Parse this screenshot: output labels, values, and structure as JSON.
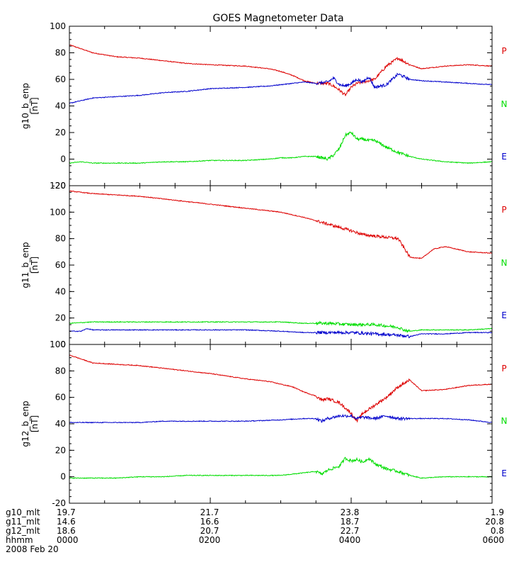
{
  "title": "GOES Magnetometer Data",
  "colors": {
    "P": "#dd0000",
    "N": "#00dd00",
    "E": "#0000cc",
    "axis": "#000000"
  },
  "legend_labels": [
    "P",
    "N",
    "E"
  ],
  "chart_data": [
    {
      "type": "line",
      "ylabel": "g10_b_enp",
      "unit": "[nT]",
      "ylim": [
        -20,
        100
      ],
      "yticks": [
        -20,
        0,
        20,
        40,
        60,
        80,
        100
      ],
      "xlim": [
        0,
        360
      ],
      "series": [
        {
          "name": "P",
          "x": [
            0,
            10,
            20,
            40,
            60,
            80,
            100,
            120,
            150,
            170,
            180,
            190,
            200,
            210,
            220,
            225,
            230,
            235,
            240,
            245,
            250,
            255,
            260,
            270,
            280,
            290,
            300,
            320,
            340,
            360
          ],
          "y": [
            86,
            83,
            80,
            77,
            76,
            74,
            72,
            71,
            70,
            68,
            66,
            63,
            59,
            57,
            57,
            55,
            52,
            48,
            54,
            57,
            58,
            59,
            60,
            70,
            76,
            71,
            68,
            70,
            71,
            70
          ]
        },
        {
          "name": "E",
          "x": [
            0,
            10,
            20,
            40,
            60,
            80,
            100,
            120,
            150,
            170,
            180,
            190,
            200,
            210,
            220,
            225,
            230,
            235,
            240,
            245,
            250,
            255,
            260,
            270,
            280,
            290,
            300,
            320,
            340,
            360
          ],
          "y": [
            42,
            44,
            46,
            47,
            48,
            50,
            51,
            53,
            54,
            55,
            56,
            57,
            58,
            57,
            58,
            61,
            56,
            55,
            57,
            60,
            58,
            62,
            54,
            56,
            64,
            60,
            59,
            58,
            57,
            56
          ]
        },
        {
          "name": "N",
          "x": [
            0,
            10,
            20,
            40,
            60,
            80,
            100,
            120,
            150,
            170,
            180,
            190,
            200,
            210,
            215,
            220,
            225,
            230,
            235,
            240,
            245,
            250,
            255,
            260,
            270,
            280,
            290,
            300,
            320,
            340,
            360
          ],
          "y": [
            -3,
            -2,
            -3,
            -3,
            -3,
            -2,
            -2,
            -1,
            -1,
            0,
            1,
            1,
            2,
            2,
            1,
            0,
            3,
            8,
            18,
            20,
            15,
            15,
            14,
            14,
            9,
            5,
            2,
            0,
            -2,
            -3,
            -2
          ]
        }
      ]
    },
    {
      "type": "line",
      "ylabel": "g11_b_enp",
      "unit": "[nT]",
      "ylim": [
        0,
        120
      ],
      "yticks": [
        0,
        20,
        40,
        60,
        80,
        100,
        120
      ],
      "xlim": [
        0,
        360
      ],
      "series": [
        {
          "name": "P",
          "x": [
            0,
            10,
            20,
            40,
            60,
            80,
            100,
            120,
            150,
            170,
            180,
            200,
            220,
            240,
            250,
            260,
            270,
            280,
            290,
            300,
            310,
            320,
            340,
            360
          ],
          "y": [
            116,
            115,
            114,
            113,
            112,
            110,
            108,
            106,
            103,
            101,
            100,
            96,
            91,
            86,
            83,
            82,
            81,
            80,
            66,
            65,
            72,
            74,
            70,
            69
          ]
        },
        {
          "name": "N",
          "x": [
            0,
            20,
            40,
            60,
            80,
            100,
            120,
            150,
            180,
            200,
            220,
            240,
            260,
            280,
            285,
            290,
            300,
            320,
            340,
            360
          ],
          "y": [
            16,
            17,
            17,
            17,
            17,
            17,
            17,
            17,
            17,
            16,
            16,
            15,
            15,
            13,
            11,
            10,
            11,
            11,
            11,
            12
          ]
        },
        {
          "name": "E",
          "x": [
            0,
            10,
            15,
            20,
            40,
            60,
            80,
            100,
            120,
            150,
            180,
            200,
            220,
            240,
            260,
            280,
            290,
            300,
            320,
            340,
            360
          ],
          "y": [
            10,
            10,
            12,
            11,
            11,
            11,
            11,
            11,
            11,
            11,
            10,
            9,
            9,
            9,
            8,
            7,
            6,
            8,
            8,
            9,
            9
          ]
        }
      ]
    },
    {
      "type": "line",
      "ylabel": "g12_b_enp",
      "unit": "[nT]",
      "ylim": [
        -20,
        100
      ],
      "yticks": [
        -20,
        0,
        20,
        40,
        60,
        80,
        100
      ],
      "xlim": [
        0,
        360
      ],
      "series": [
        {
          "name": "P",
          "x": [
            0,
            10,
            20,
            40,
            60,
            80,
            100,
            120,
            150,
            170,
            190,
            200,
            210,
            215,
            220,
            230,
            235,
            240,
            245,
            250,
            260,
            270,
            280,
            290,
            300,
            320,
            340,
            360
          ],
          "y": [
            92,
            89,
            86,
            85,
            84,
            82,
            80,
            78,
            74,
            72,
            68,
            64,
            61,
            58,
            59,
            56,
            52,
            48,
            42,
            48,
            54,
            60,
            68,
            73,
            65,
            66,
            69,
            70
          ]
        },
        {
          "name": "E",
          "x": [
            0,
            20,
            40,
            60,
            80,
            100,
            120,
            150,
            180,
            200,
            210,
            215,
            220,
            230,
            240,
            245,
            250,
            260,
            270,
            280,
            300,
            320,
            340,
            360
          ],
          "y": [
            41,
            41,
            41,
            41,
            42,
            42,
            42,
            42,
            43,
            44,
            44,
            42,
            44,
            46,
            46,
            44,
            45,
            44,
            46,
            44,
            44,
            44,
            43,
            41
          ]
        },
        {
          "name": "N",
          "x": [
            0,
            20,
            40,
            60,
            80,
            100,
            120,
            150,
            180,
            200,
            210,
            215,
            220,
            230,
            235,
            240,
            245,
            250,
            255,
            260,
            270,
            280,
            290,
            300,
            320,
            340,
            360
          ],
          "y": [
            -1,
            -1,
            -1,
            0,
            0,
            1,
            1,
            1,
            1,
            3,
            4,
            2,
            5,
            8,
            14,
            12,
            13,
            11,
            14,
            10,
            6,
            4,
            1,
            -1,
            0,
            0,
            0
          ]
        }
      ]
    }
  ],
  "footer": {
    "rows": [
      {
        "label": "g10_mlt",
        "values": [
          "19.7",
          "21.7",
          "23.8",
          "1.9"
        ]
      },
      {
        "label": "g11_mlt",
        "values": [
          "14.6",
          "16.6",
          "18.7",
          "20.8"
        ]
      },
      {
        "label": "g12_mlt",
        "values": [
          "18.6",
          "20.7",
          "22.7",
          "0.8"
        ]
      },
      {
        "label": "hhmm",
        "values": [
          "0000",
          "0200",
          "0400",
          "0600"
        ]
      }
    ],
    "date": "2008 Feb 20"
  }
}
